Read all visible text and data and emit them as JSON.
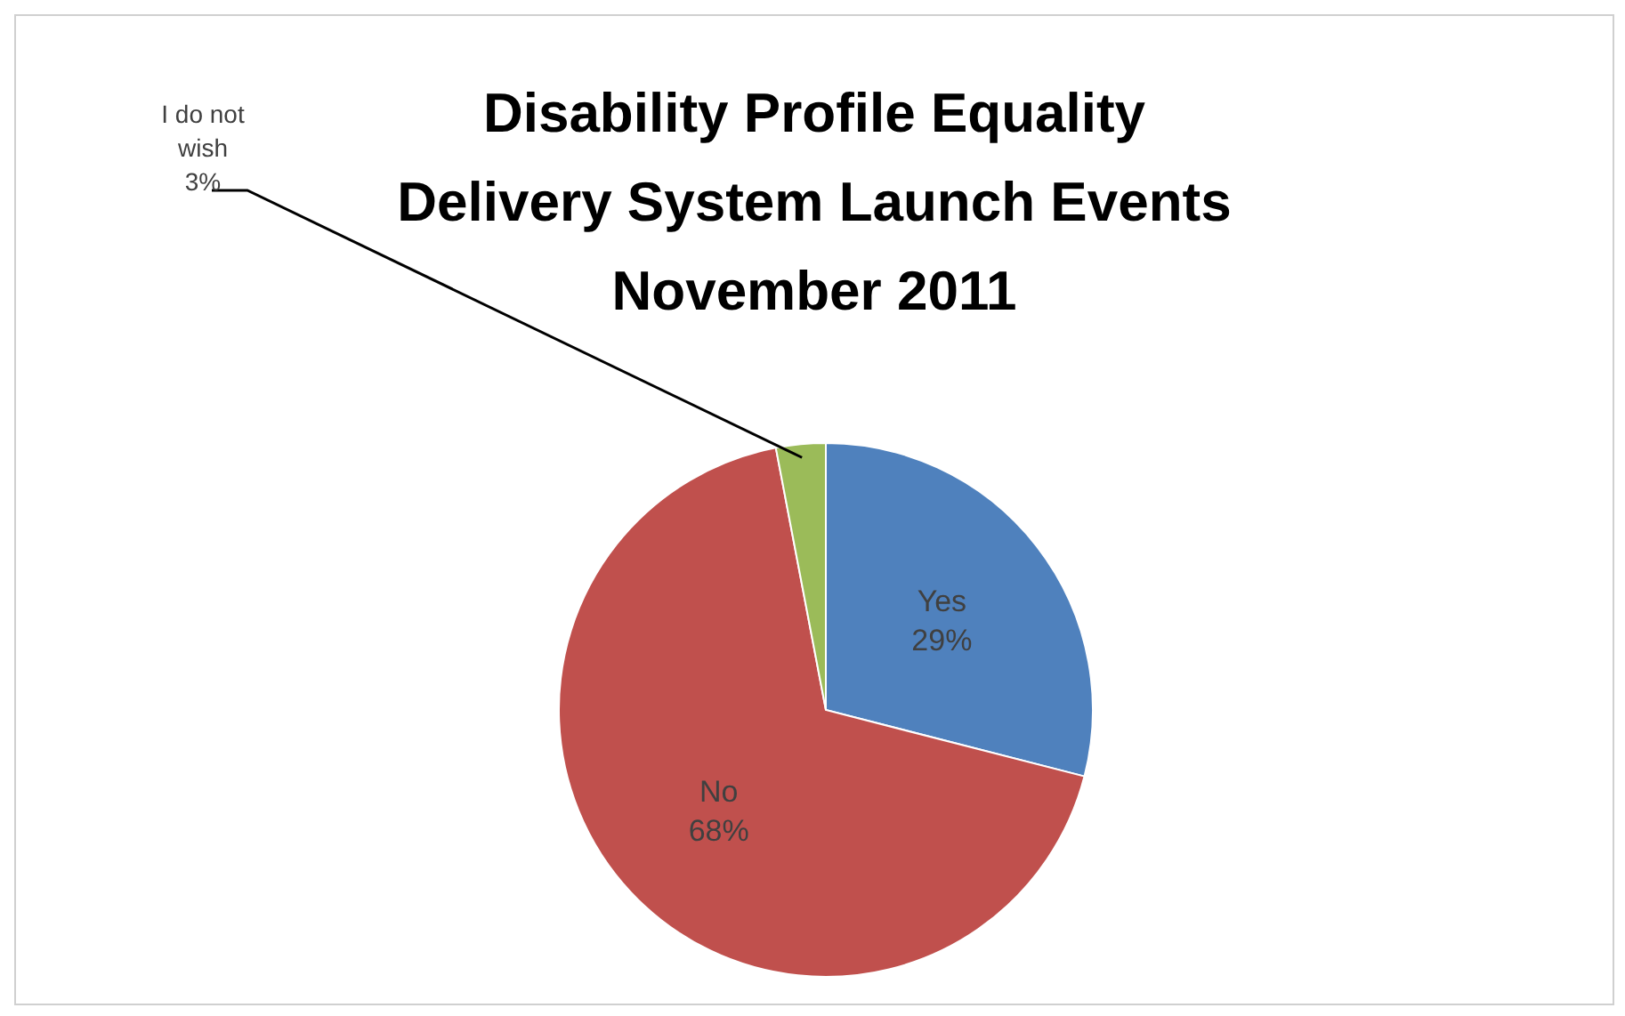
{
  "chart_data": {
    "type": "pie",
    "title": "Disability Profile Equality Delivery System Launch Events November 2011",
    "categories": [
      "Yes",
      "No",
      "I do not wish"
    ],
    "values": [
      29,
      68,
      3
    ],
    "value_labels": [
      "29%",
      "68%",
      "3%"
    ],
    "colors": [
      "#4f81bd",
      "#c0504d",
      "#9bbb59"
    ],
    "legend": false
  }
}
